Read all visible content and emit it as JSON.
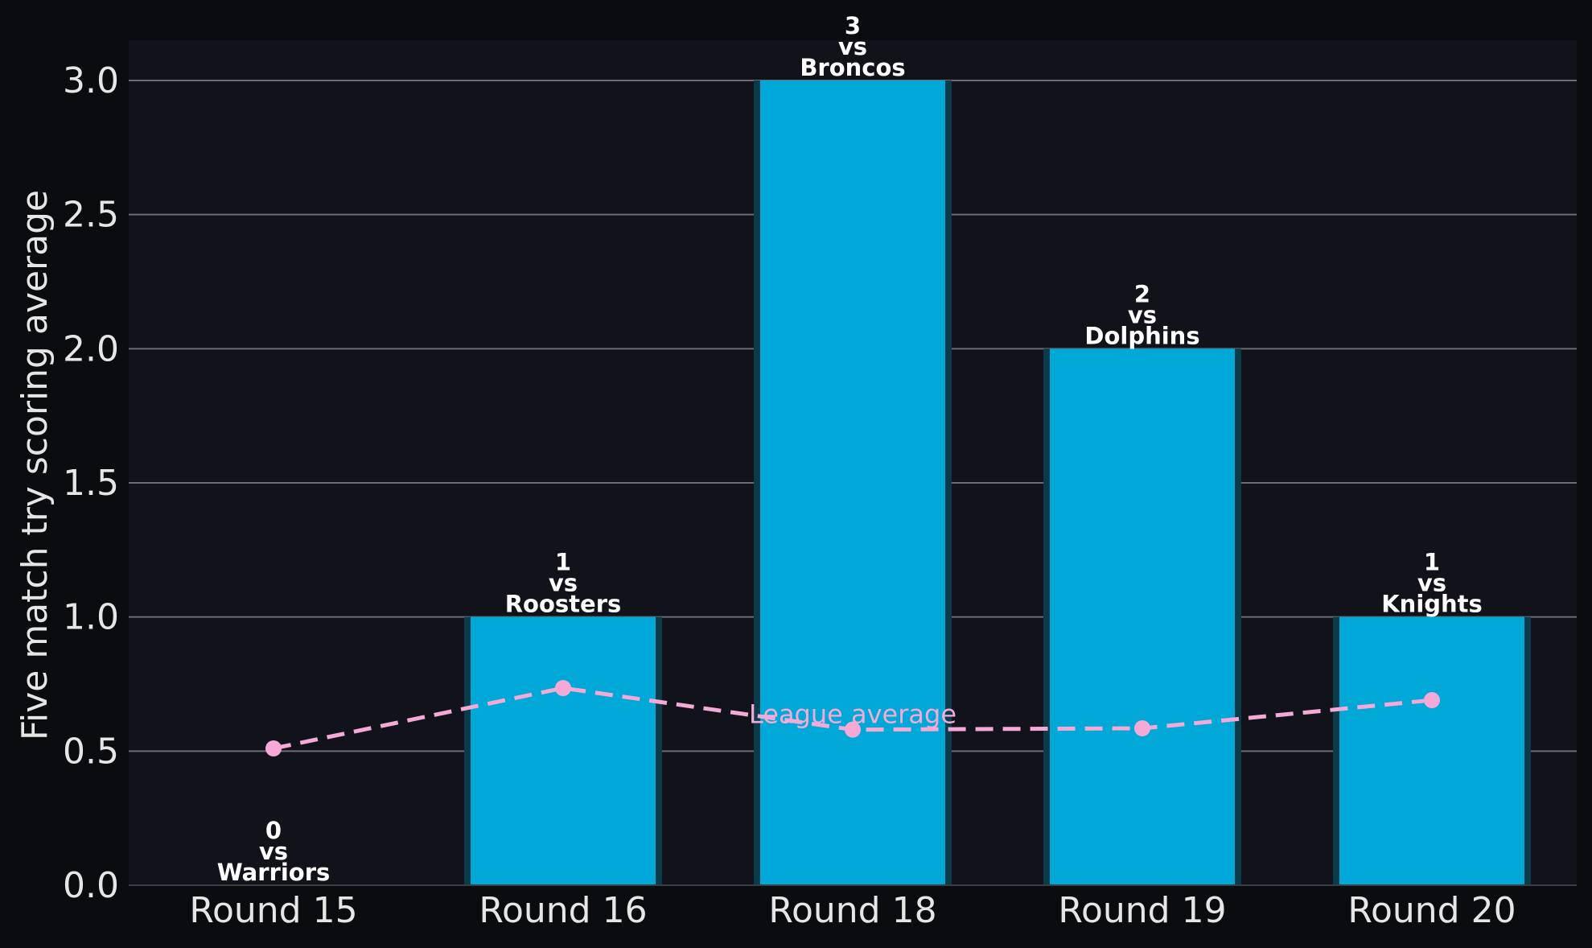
{
  "colors": {
    "figure_background": "#0b0c10",
    "plot_background": "#12131a",
    "bar": "#00a8d8",
    "bar_edge": "#0b3a4a",
    "league_line": "#f5a9d6",
    "grid": "#6b6e73",
    "text": "#e6e6e6"
  },
  "chart_data": {
    "type": "bar",
    "ylabel": "Five match try scoring average",
    "ylim": [
      0,
      3.15
    ],
    "yticks": [
      "0.0",
      "0.5",
      "1.0",
      "1.5",
      "2.0",
      "2.5",
      "3.0"
    ],
    "grid": "horizontal",
    "categories": [
      "Round 15",
      "Round 16",
      "Round 18",
      "Round 19",
      "Round 20"
    ],
    "values": [
      0,
      1,
      3,
      2,
      1
    ],
    "bar_labels": [
      [
        "0",
        "vs",
        "Warriors"
      ],
      [
        "1",
        "vs",
        "Roosters"
      ],
      [
        "3",
        "vs",
        "Broncos"
      ],
      [
        "2",
        "vs",
        "Dolphins"
      ],
      [
        "1",
        "vs",
        "Knights"
      ]
    ],
    "league_average": {
      "label": "League average",
      "values": [
        0.51,
        0.735,
        0.58,
        0.585,
        0.69
      ]
    }
  }
}
